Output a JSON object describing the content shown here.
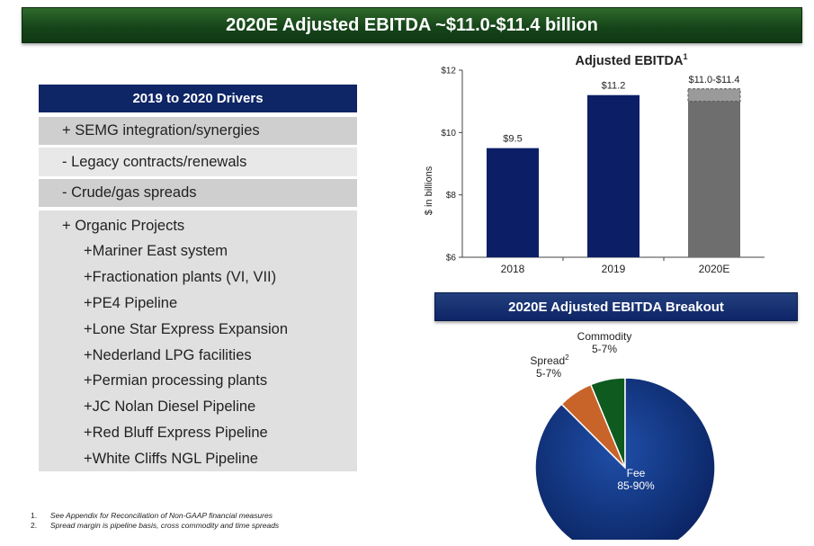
{
  "title": "2020E Adjusted EBITDA ~$11.0-$11.4 billion",
  "drivers": {
    "header": "2019 to 2020 Drivers",
    "items": [
      "+ SEMG integration/synergies",
      "- Legacy contracts/renewals",
      "- Crude/gas spreads",
      "+ Organic Projects"
    ],
    "organic_projects": [
      "+Mariner East system",
      "+Fractionation plants (VI, VII)",
      "+PE4 Pipeline",
      "+Lone Star Express Expansion",
      "+Nederland LPG facilities",
      "+Permian processing plants",
      "+JC Nolan Diesel Pipeline",
      "+Red Bluff Express Pipeline",
      "+White Cliffs NGL Pipeline"
    ]
  },
  "breakout_header": "2020E Adjusted EBITDA Breakout",
  "footnotes": [
    {
      "num": "1.",
      "text": "See Appendix for Reconciliation of Non-GAAP financial measures"
    },
    {
      "num": "2.",
      "text": "Spread margin is pipeline basis, cross commodity and time spreads"
    }
  ],
  "colors": {
    "title_green": "#16451a",
    "navy": "#0e2566",
    "bar_navy": "#0c1f66",
    "bar_gray": "#6e6e6e",
    "spread": "#c8642a",
    "commodity": "#0e5a1f"
  },
  "chart_data": [
    {
      "type": "bar",
      "title": "Adjusted EBITDA",
      "title_sup": "1",
      "ylabel": "$ in billions",
      "ylim": [
        6,
        12
      ],
      "yticks": [
        6,
        8,
        10,
        12
      ],
      "ytick_labels": [
        "$6",
        "$8",
        "$10",
        "$12"
      ],
      "categories": [
        "2018",
        "2019",
        "2020E"
      ],
      "values": [
        9.5,
        11.2,
        11.4
      ],
      "range_low_2020E": 11.0,
      "data_labels": [
        "$9.5",
        "$11.2",
        "$11.0-$11.4"
      ]
    },
    {
      "type": "pie",
      "slices": [
        {
          "name": "Fee",
          "label": "85-90%",
          "value": 87.5
        },
        {
          "name": "Spread",
          "sup": "2",
          "label": "5-7%",
          "value": 6.25
        },
        {
          "name": "Commodity",
          "label": "5-7%",
          "value": 6.25
        }
      ]
    }
  ]
}
